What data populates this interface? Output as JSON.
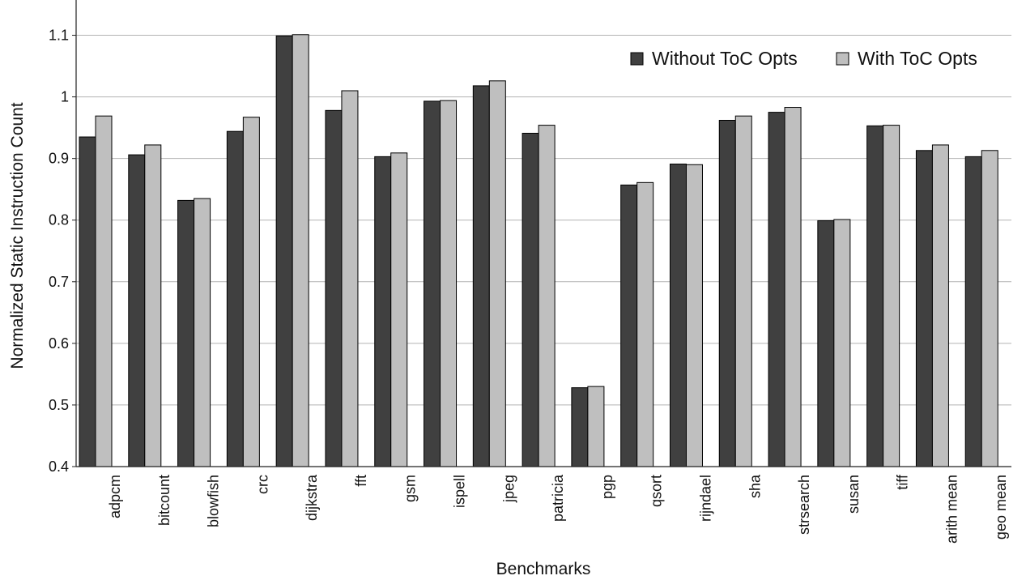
{
  "chart_data": {
    "type": "bar",
    "xlabel": "Benchmarks",
    "ylabel": "Normalized Static Instruction Count",
    "ylim": [
      0.4,
      1.15
    ],
    "yticks": [
      0.4,
      0.5,
      0.6,
      0.7,
      0.8,
      0.9,
      1,
      1.1
    ],
    "ytick_labels": [
      "0.4",
      "0.5",
      "0.6",
      "0.7",
      "0.8",
      "0.9",
      "1",
      "1.1"
    ],
    "grid": true,
    "legend_position": "top-right",
    "categories": [
      "adpcm",
      "bitcount",
      "blowfish",
      "crc",
      "dijkstra",
      "fft",
      "gsm",
      "ispell",
      "jpeg",
      "patricia",
      "pgp",
      "qsort",
      "rijndael",
      "sha",
      "strsearch",
      "susan",
      "tiff",
      "arith mean",
      "geo mean"
    ],
    "series": [
      {
        "name": "Without ToC Opts",
        "color": "#404040",
        "values": [
          0.935,
          0.906,
          0.832,
          0.944,
          1.099,
          0.978,
          0.903,
          0.993,
          1.018,
          0.941,
          0.528,
          0.857,
          0.891,
          0.962,
          0.975,
          0.799,
          0.953,
          0.913,
          0.903
        ]
      },
      {
        "name": "With ToC Opts",
        "color": "#bfbfbf",
        "values": [
          0.969,
          0.922,
          0.835,
          0.967,
          1.101,
          1.01,
          0.909,
          0.994,
          1.026,
          0.954,
          0.53,
          0.861,
          0.89,
          0.969,
          0.983,
          0.801,
          0.954,
          0.922,
          0.913
        ]
      }
    ]
  }
}
